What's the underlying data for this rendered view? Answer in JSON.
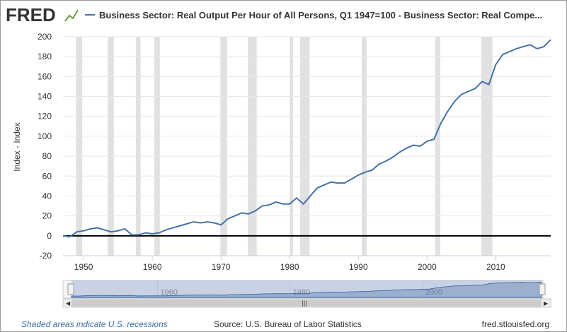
{
  "chart_data": {
    "type": "line",
    "logo": "FRED",
    "ylabel": "Index - Index",
    "note": "Shaded areas indicate U.S. recessions",
    "source": "Source: U.S. Bureau of Labor Statistics",
    "site": "fred.stlouisfed.org",
    "xlim": [
      1947,
      2018
    ],
    "ylim": [
      -20,
      200
    ],
    "xticks": [
      1950,
      1960,
      1970,
      1980,
      1990,
      2000,
      2010
    ],
    "yticks": [
      -20,
      0,
      20,
      40,
      60,
      80,
      100,
      120,
      140,
      160,
      180,
      200
    ],
    "navigator_ticks": [
      1960,
      1980,
      2000
    ],
    "recessions": [
      [
        1948.9,
        1949.8
      ],
      [
        1953.5,
        1954.4
      ],
      [
        1957.6,
        1958.3
      ],
      [
        1960.3,
        1961.1
      ],
      [
        1969.9,
        1970.9
      ],
      [
        1973.9,
        1975.2
      ],
      [
        1980.0,
        1980.5
      ],
      [
        1981.5,
        1982.9
      ],
      [
        1990.5,
        1991.2
      ],
      [
        2001.2,
        2001.9
      ],
      [
        2007.9,
        2009.5
      ]
    ],
    "x": [
      1947,
      1948,
      1949,
      1950,
      1951,
      1952,
      1953,
      1954,
      1955,
      1956,
      1957,
      1958,
      1959,
      1960,
      1961,
      1962,
      1963,
      1964,
      1965,
      1966,
      1967,
      1968,
      1969,
      1970,
      1971,
      1972,
      1973,
      1974,
      1975,
      1976,
      1977,
      1978,
      1979,
      1980,
      1981,
      1982,
      1983,
      1984,
      1985,
      1986,
      1987,
      1988,
      1989,
      1990,
      1991,
      1992,
      1993,
      1994,
      1995,
      1996,
      1997,
      1998,
      1999,
      2000,
      2001,
      2002,
      2003,
      2004,
      2005,
      2006,
      2007,
      2008,
      2009,
      2010,
      2011,
      2012,
      2013,
      2014,
      2015,
      2016,
      2017,
      2018
    ],
    "series": [
      {
        "name": "Business Sector: Real Output Per Hour of All Persons, Q1 1947=100 - Business Sector: Real Compe...",
        "color": "#4572a7",
        "values": [
          0,
          -1,
          4,
          5,
          7,
          8,
          6,
          4,
          5,
          7,
          1,
          1,
          3,
          2,
          3,
          6,
          8,
          10,
          12,
          14,
          13,
          14,
          13,
          11,
          17,
          20,
          23,
          22,
          25,
          30,
          31,
          34,
          32,
          32,
          38,
          32,
          40,
          48,
          51,
          54,
          53,
          53,
          57,
          61,
          64,
          66,
          72,
          75,
          79,
          84,
          88,
          91,
          90,
          95,
          97,
          113,
          125,
          135,
          142,
          145,
          148,
          155,
          152,
          172,
          182,
          185,
          188,
          190,
          192,
          188,
          190,
          197
        ]
      }
    ]
  }
}
